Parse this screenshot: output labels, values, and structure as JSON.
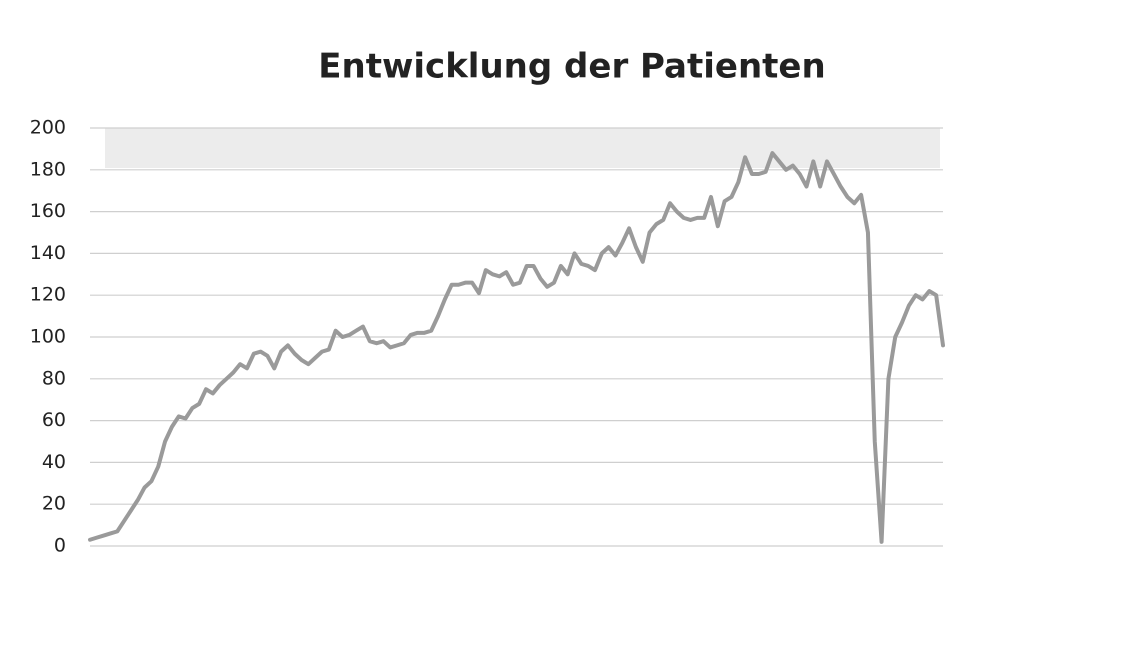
{
  "chart_data": {
    "type": "line",
    "title": "Entwicklung der Patienten",
    "series": [
      {
        "color": "#9a9a9a",
        "values": [
          3,
          4,
          5,
          6,
          7,
          12,
          17,
          22,
          28,
          31,
          38,
          50,
          57,
          62,
          61,
          66,
          68,
          75,
          73,
          77,
          80,
          83,
          87,
          85,
          92,
          93,
          91,
          85,
          93,
          96,
          92,
          89,
          87,
          90,
          93,
          94,
          103,
          100,
          101,
          103,
          105,
          98,
          97,
          98,
          95,
          96,
          97,
          101,
          102,
          102,
          103,
          110,
          118,
          125,
          125,
          126,
          126,
          121,
          132,
          130,
          129,
          131,
          125,
          126,
          134,
          134,
          128,
          124,
          126,
          134,
          130,
          140,
          135,
          134,
          132,
          140,
          143,
          139,
          145,
          152,
          143,
          136,
          150,
          154,
          156,
          164,
          160,
          157,
          156,
          157,
          157,
          167,
          153,
          165,
          167,
          174,
          186,
          178,
          178,
          179,
          188,
          184,
          180,
          182,
          178,
          172,
          184,
          172,
          184,
          178,
          172,
          167,
          164,
          168,
          150,
          50,
          2,
          80,
          100,
          107,
          115,
          120,
          118,
          122,
          120,
          96
        ]
      }
    ],
    "ylim": [
      0,
      200
    ],
    "yticks": [
      0,
      20,
      40,
      60,
      80,
      100,
      120,
      140,
      160,
      180,
      200
    ],
    "grid": true
  }
}
